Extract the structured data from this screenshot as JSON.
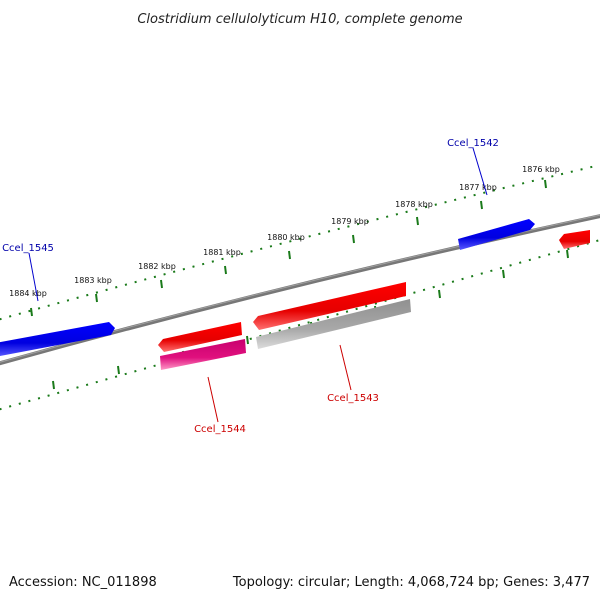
{
  "title": "Clostridium cellulolyticum H10, complete genome",
  "footer": {
    "accession": "Accession: NC_011898",
    "summary": "Topology: circular; Length: 4,068,724 bp; Genes: 3,477"
  },
  "scale_ticks": [
    {
      "label": "1876 kbp"
    },
    {
      "label": "1877 kbp"
    },
    {
      "label": "1878 kbp"
    },
    {
      "label": "1879 kbp"
    },
    {
      "label": "1880 kbp"
    },
    {
      "label": "1881 kbp"
    },
    {
      "label": "1882 kbp"
    },
    {
      "label": "1883 kbp"
    },
    {
      "label": "1884 kbp"
    }
  ],
  "genes": [
    {
      "label": "Ccel_1542",
      "strand": "forward",
      "color": "#0000ee"
    },
    {
      "label": "Ccel_1545",
      "strand": "forward",
      "color": "#0000ee"
    },
    {
      "label": "Ccel_1543",
      "strand": "reverse",
      "color": "#ee0000"
    },
    {
      "label": "Ccel_1544",
      "strand": "reverse",
      "color": "#ee0000"
    }
  ],
  "colors": {
    "backbone": "#777777",
    "ticks": "#1a7a1a",
    "forward_gene": "#0000ee",
    "reverse_gene": "#ee0000",
    "pink_feature": "#e0107e",
    "gray_feature": "#a8a8a8"
  }
}
